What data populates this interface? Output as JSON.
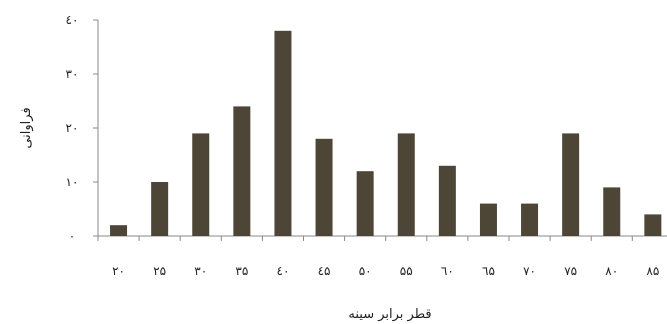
{
  "chart_data": {
    "type": "bar",
    "title": "",
    "xlabel": "قطر برابر سینه",
    "ylabel": "فراوانی",
    "categories": [
      "۲۰",
      "۲۵",
      "۳۰",
      "۳۵",
      "٤۰",
      "٤۵",
      "۵۰",
      "۵۵",
      "٦۰",
      "٦۵",
      "۷۰",
      "۷۵",
      "۸۰",
      "۸۵"
    ],
    "values": [
      2,
      10,
      19,
      24,
      38,
      18,
      12,
      19,
      13,
      6,
      6,
      19,
      9,
      4
    ],
    "yticks": [
      0,
      10,
      20,
      30,
      40
    ],
    "ytick_labels": [
      "۰",
      "۱۰",
      "۲۰",
      "۳۰",
      "٤۰"
    ],
    "ylim": [
      0,
      40
    ],
    "grid": false,
    "legend": "none",
    "bar_color": "#4d4535",
    "axis_color": "#888888"
  }
}
